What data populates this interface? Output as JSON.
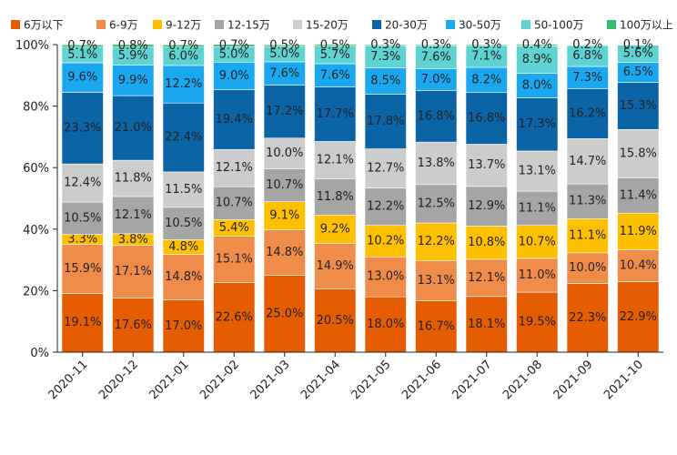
{
  "chart_data": {
    "type": "bar",
    "stacked": true,
    "title": "",
    "xlabel": "",
    "ylabel": "",
    "ylim": [
      0,
      100
    ],
    "yticks": [
      "0%",
      "20%",
      "40%",
      "60%",
      "80%",
      "100%"
    ],
    "categories": [
      "2020-11",
      "2020-12",
      "2021-01",
      "2021-02",
      "2021-03",
      "2021-04",
      "2021-05",
      "2021-06",
      "2021-07",
      "2021-08",
      "2021-09",
      "2021-10"
    ],
    "legend_position": "top",
    "series": [
      {
        "name": "6万以下",
        "color": "#e65c00",
        "values": [
          19.1,
          17.6,
          17.0,
          22.6,
          25.0,
          20.5,
          18.0,
          16.7,
          18.1,
          19.5,
          22.3,
          22.9
        ]
      },
      {
        "name": "6-9万",
        "color": "#f08c4a",
        "values": [
          15.9,
          17.1,
          14.8,
          15.1,
          14.8,
          14.9,
          13.0,
          13.1,
          12.1,
          11.0,
          10.0,
          10.4
        ]
      },
      {
        "name": "9-12万",
        "color": "#ffc000",
        "values": [
          3.3,
          3.8,
          4.8,
          5.4,
          9.1,
          9.2,
          10.2,
          12.2,
          10.8,
          10.7,
          11.1,
          11.9
        ]
      },
      {
        "name": "12-15万",
        "color": "#a5a5a5",
        "values": [
          10.5,
          12.1,
          10.5,
          10.7,
          10.7,
          11.8,
          12.2,
          12.5,
          12.9,
          11.1,
          11.3,
          11.4
        ]
      },
      {
        "name": "15-20万",
        "color": "#cccccc",
        "values": [
          12.4,
          11.8,
          11.5,
          12.1,
          10.0,
          12.1,
          12.7,
          13.8,
          13.7,
          13.1,
          14.7,
          15.8
        ]
      },
      {
        "name": "20-30万",
        "color": "#0a64a5",
        "values": [
          23.3,
          21.0,
          22.4,
          19.4,
          17.2,
          17.7,
          17.8,
          16.8,
          16.8,
          17.3,
          16.2,
          15.3
        ]
      },
      {
        "name": "30-50万",
        "color": "#1aa8f0",
        "values": [
          9.6,
          9.9,
          12.2,
          9.0,
          7.6,
          7.6,
          8.5,
          7.0,
          8.2,
          8.0,
          7.3,
          6.5
        ]
      },
      {
        "name": "50-100万",
        "color": "#5fd3d3",
        "values": [
          5.1,
          5.9,
          6.0,
          5.0,
          5.0,
          5.7,
          7.3,
          7.6,
          7.1,
          8.9,
          6.8,
          5.6
        ]
      },
      {
        "name": "100万以上",
        "color": "#2dbf6e",
        "values": [
          0.7,
          0.8,
          0.7,
          0.7,
          0.5,
          0.5,
          0.3,
          0.3,
          0.3,
          0.4,
          0.2,
          0.1
        ]
      }
    ]
  }
}
